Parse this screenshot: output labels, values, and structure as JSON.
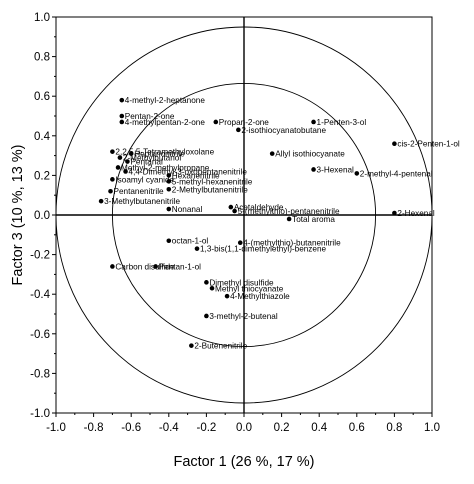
{
  "chart_data": {
    "type": "scatter",
    "title": "",
    "xlabel": "Factor 1 (26 %, 17 %)",
    "ylabel": "Factor 3 (10 %, 13 %)",
    "xlim": [
      -1.0,
      1.0
    ],
    "ylim": [
      -1.0,
      1.0
    ],
    "xticks": [
      "-1.0",
      "-0.8",
      "-0.6",
      "-0.4",
      "-0.2",
      "0.0",
      "0.2",
      "0.4",
      "0.6",
      "0.8",
      "1.0"
    ],
    "yticks": [
      "1.0",
      "0.8",
      "0.6",
      "0.4",
      "0.2",
      "0.0",
      "-0.2",
      "-0.4",
      "-0.6",
      "-0.8",
      "-1.0"
    ],
    "grid": false,
    "reference_circles": [
      1.0,
      0.7
    ],
    "points": [
      {
        "label": "4-methyl-2-heptanone",
        "x": -0.65,
        "y": 0.58
      },
      {
        "label": "Pentan-2-one",
        "x": -0.65,
        "y": 0.5
      },
      {
        "label": "4-methylpentan-2-one",
        "x": -0.65,
        "y": 0.47
      },
      {
        "label": "Propan-2-one",
        "x": -0.15,
        "y": 0.47
      },
      {
        "label": "2-isothiocyanatobutane",
        "x": -0.03,
        "y": 0.43
      },
      {
        "label": "1-Penten-3-ol",
        "x": 0.37,
        "y": 0.47
      },
      {
        "label": "cis-2-Penten-1-ol",
        "x": 0.8,
        "y": 0.36
      },
      {
        "label": "2,2,5,5-Tetramethyloxolane",
        "x": -0.7,
        "y": 0.32
      },
      {
        "label": "2-Methylbutanol",
        "x": -0.66,
        "y": 0.29
      },
      {
        "label": "Heptanonitrile",
        "x": -0.6,
        "y": 0.31
      },
      {
        "label": "Pentanal",
        "x": -0.62,
        "y": 0.27
      },
      {
        "label": "Methyl-2-methylpropane",
        "x": -0.67,
        "y": 0.24
      },
      {
        "label": "4,4-Dimethyl-3-oxopentanenitrile",
        "x": -0.63,
        "y": 0.22
      },
      {
        "label": "Hexanenitrile",
        "x": -0.4,
        "y": 0.2
      },
      {
        "label": "5-methyl-hexanenitrile",
        "x": -0.4,
        "y": 0.17
      },
      {
        "label": "2-Methylbutanenitrile",
        "x": -0.4,
        "y": 0.13
      },
      {
        "label": "Isoamyl cyanide",
        "x": -0.7,
        "y": 0.18
      },
      {
        "label": "Pentanenitrile",
        "x": -0.71,
        "y": 0.12
      },
      {
        "label": "3-Methylbutanenitrile",
        "x": -0.76,
        "y": 0.07
      },
      {
        "label": "Nonanal",
        "x": -0.4,
        "y": 0.03
      },
      {
        "label": "Allyl isothiocyanate",
        "x": 0.15,
        "y": 0.31
      },
      {
        "label": "3-Hexenal",
        "x": 0.37,
        "y": 0.23
      },
      {
        "label": "2-methyl-4-pentenal",
        "x": 0.6,
        "y": 0.21
      },
      {
        "label": "Acetaldehyde",
        "x": -0.07,
        "y": 0.04
      },
      {
        "label": "5-(methylthio)-pentanenitrile",
        "x": -0.05,
        "y": 0.02
      },
      {
        "label": "Total aroma",
        "x": 0.24,
        "y": -0.02
      },
      {
        "label": "2-Hexenal",
        "x": 0.8,
        "y": 0.01
      },
      {
        "label": "octan-1-ol",
        "x": -0.4,
        "y": -0.13
      },
      {
        "label": "4-(methylthio)-butanenitrile",
        "x": -0.02,
        "y": -0.14
      },
      {
        "label": "1,3-bis(1,1-dimethylethyl)-benzene",
        "x": -0.25,
        "y": -0.17
      },
      {
        "label": "Carbon disulfide",
        "x": -0.7,
        "y": -0.26
      },
      {
        "label": "Pentan-1-ol",
        "x": -0.47,
        "y": -0.26
      },
      {
        "label": "Dimethyl disulfide",
        "x": -0.2,
        "y": -0.34
      },
      {
        "label": "Methyl thiocyanate",
        "x": -0.17,
        "y": -0.37
      },
      {
        "label": "4-Methylthiazole",
        "x": -0.09,
        "y": -0.41
      },
      {
        "label": "3-methyl-2-butenal",
        "x": -0.2,
        "y": -0.51
      },
      {
        "label": "2-Butenenitrile",
        "x": -0.28,
        "y": -0.66
      }
    ]
  }
}
